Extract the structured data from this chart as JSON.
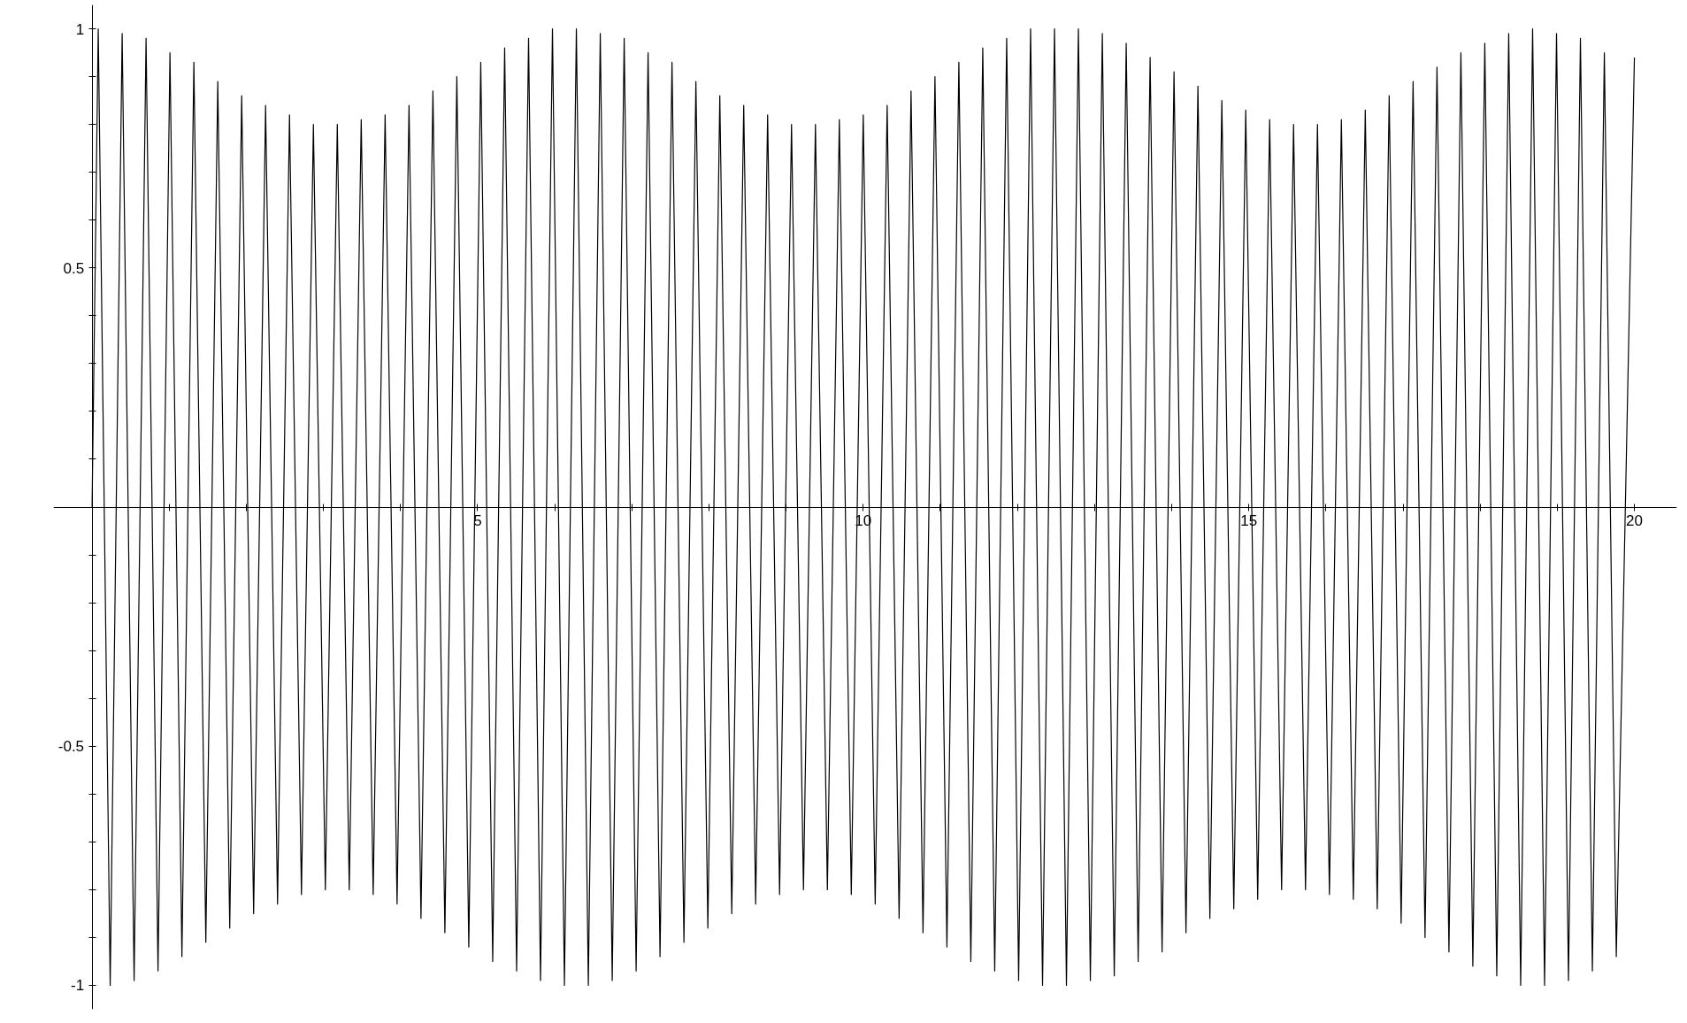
{
  "chart_data": {
    "type": "line",
    "xlim": [
      -0.5,
      20.55
    ],
    "ylim": [
      -1.05,
      1.05
    ],
    "xticks": [
      {
        "value": 1,
        "label": null
      },
      {
        "value": 2,
        "label": null
      },
      {
        "value": 3,
        "label": null
      },
      {
        "value": 4,
        "label": null
      },
      5,
      {
        "value": 6,
        "label": null
      },
      {
        "value": 7,
        "label": null
      },
      {
        "value": 8,
        "label": null
      },
      {
        "value": 9,
        "label": null
      },
      10,
      {
        "value": 11,
        "label": null
      },
      {
        "value": 12,
        "label": null
      },
      {
        "value": 13,
        "label": null
      },
      {
        "value": 14,
        "label": null
      },
      15,
      {
        "value": 16,
        "label": null
      },
      {
        "value": 17,
        "label": null
      },
      {
        "value": 18,
        "label": null
      },
      {
        "value": 19,
        "label": null
      },
      20
    ],
    "yticks": [
      -1,
      {
        "value": -0.9,
        "label": null
      },
      {
        "value": -0.8,
        "label": null
      },
      {
        "value": -0.7,
        "label": null
      },
      {
        "value": -0.6,
        "label": null
      },
      -0.5,
      {
        "value": -0.4,
        "label": null
      },
      {
        "value": -0.3,
        "label": null
      },
      {
        "value": -0.2,
        "label": null
      },
      {
        "value": -0.1,
        "label": null
      },
      {
        "value": 0.1,
        "label": null
      },
      {
        "value": 0.2,
        "label": null
      },
      {
        "value": 0.3,
        "label": null
      },
      {
        "value": 0.4,
        "label": null
      },
      0.5,
      {
        "value": 0.6,
        "label": null
      },
      {
        "value": 0.7,
        "label": null
      },
      {
        "value": 0.8,
        "label": null
      },
      {
        "value": 0.9,
        "label": null
      },
      1
    ],
    "grid": false,
    "marker": "none",
    "line_style": "solid",
    "series": [
      {
        "color": "#000000",
        "x": [
          0,
          0.08,
          0.235,
          0.39,
          0.545,
          0.7,
          0.855,
          1.01,
          1.165,
          1.32,
          1.475,
          1.63,
          1.785,
          1.94,
          2.095,
          2.25,
          2.405,
          2.56,
          2.715,
          2.87,
          3.025,
          3.18,
          3.335,
          3.49,
          3.645,
          3.8,
          3.955,
          4.11,
          4.265,
          4.42,
          4.575,
          4.73,
          4.885,
          5.04,
          5.195,
          5.35,
          5.505,
          5.66,
          5.815,
          5.97,
          6.125,
          6.28,
          6.435,
          6.59,
          6.745,
          6.9,
          7.055,
          7.21,
          7.365,
          7.52,
          7.675,
          7.83,
          7.985,
          8.14,
          8.295,
          8.45,
          8.605,
          8.76,
          8.915,
          9.07,
          9.225,
          9.38,
          9.535,
          9.69,
          9.845,
          10.0,
          10.155,
          10.31,
          10.465,
          10.62,
          10.775,
          10.93,
          11.085,
          11.24,
          11.395,
          11.55,
          11.705,
          11.86,
          12.015,
          12.17,
          12.325,
          12.48,
          12.635,
          12.79,
          12.945,
          13.1,
          13.255,
          13.41,
          13.565,
          13.72,
          13.875,
          14.03,
          14.185,
          14.34,
          14.495,
          14.65,
          14.805,
          14.96,
          15.115,
          15.27,
          15.425,
          15.58,
          15.735,
          15.89,
          16.045,
          16.2,
          16.355,
          16.51,
          16.665,
          16.82,
          16.975,
          17.13,
          17.285,
          17.44,
          17.595,
          17.75,
          17.905,
          18.06,
          18.215,
          18.37,
          18.525,
          18.68,
          18.835,
          18.99,
          19.145,
          19.3,
          19.455,
          19.61,
          19.765,
          20.0
        ],
        "values": [
          0,
          1.0,
          -1.0,
          0.99,
          -0.99,
          0.98,
          -0.97,
          0.95,
          -0.94,
          0.93,
          -0.91,
          0.89,
          -0.88,
          0.86,
          -0.85,
          0.84,
          -0.83,
          0.82,
          -0.81,
          0.8,
          -0.8,
          0.8,
          -0.8,
          0.81,
          -0.81,
          0.82,
          -0.83,
          0.84,
          -0.86,
          0.87,
          -0.89,
          0.9,
          -0.92,
          0.93,
          -0.95,
          0.96,
          -0.97,
          0.98,
          -0.99,
          1.0,
          -1.0,
          1.0,
          -1.0,
          0.99,
          -0.99,
          0.98,
          -0.97,
          0.95,
          -0.94,
          0.93,
          -0.91,
          0.89,
          -0.88,
          0.86,
          -0.85,
          0.84,
          -0.83,
          0.82,
          -0.81,
          0.8,
          -0.8,
          0.8,
          -0.8,
          0.81,
          -0.81,
          0.82,
          -0.83,
          0.84,
          -0.86,
          0.87,
          -0.89,
          0.9,
          -0.92,
          0.93,
          -0.95,
          0.96,
          -0.97,
          0.98,
          -0.99,
          1.0,
          -1.0,
          1.0,
          -1.0,
          1.0,
          -0.99,
          0.99,
          -0.98,
          0.97,
          -0.95,
          0.94,
          -0.93,
          0.91,
          -0.89,
          0.88,
          -0.86,
          0.85,
          -0.84,
          0.83,
          -0.82,
          0.81,
          -0.8,
          0.8,
          -0.8,
          0.8,
          -0.81,
          0.81,
          -0.82,
          0.83,
          -0.84,
          0.86,
          -0.87,
          0.89,
          -0.9,
          0.92,
          -0.93,
          0.95,
          -0.96,
          0.97,
          -0.98,
          0.99,
          -1.0,
          1.0,
          -1.0,
          0.99,
          -0.99,
          0.98,
          -0.97,
          0.95,
          -0.94,
          0.94
        ]
      }
    ]
  }
}
